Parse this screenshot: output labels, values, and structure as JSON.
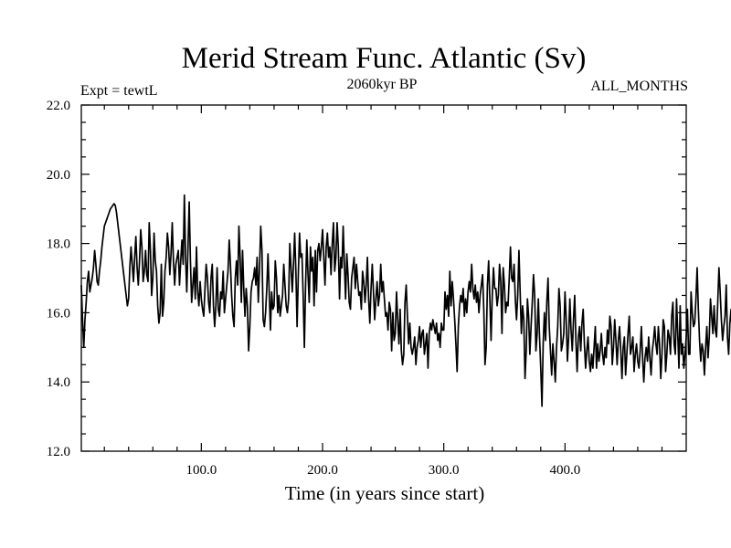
{
  "chart_data": {
    "type": "line",
    "title": "Merid Stream Func. Atlantic (Sv)",
    "subtitle_left": "Expt = tewtL",
    "subtitle_center": "2060kyr BP",
    "subtitle_right": "ALL_MONTHS",
    "xlabel": "Time (in years since start)",
    "ylabel": "",
    "xlim": [
      1,
      500
    ],
    "ylim": [
      12.0,
      22.0
    ],
    "x_ticks": [
      100,
      200,
      300,
      400
    ],
    "x_tick_labels": [
      "100.0",
      "200.0",
      "300.0",
      "400.0"
    ],
    "y_ticks": [
      12,
      14,
      16,
      18,
      20,
      22
    ],
    "y_tick_labels": [
      "12.0",
      "14.0",
      "16.0",
      "18.0",
      "20.0",
      "22.0"
    ],
    "x_start": 1,
    "x_step": 1,
    "series": [
      {
        "name": "Merid Stream Func. Atlantic",
        "color": "#000000",
        "values": [
          16.8,
          15.8,
          15.0,
          15.8,
          16.3,
          16.9,
          17.2,
          16.6,
          16.8,
          17.0,
          17.3,
          17.8,
          17.4,
          16.9,
          16.8,
          17.2,
          17.5,
          17.9,
          18.2,
          18.5,
          18.6,
          18.7,
          18.8,
          18.9,
          19.0,
          19.05,
          19.1,
          19.15,
          19.1,
          18.9,
          18.6,
          18.3,
          18.0,
          17.7,
          17.4,
          17.1,
          16.8,
          16.5,
          16.2,
          16.4,
          17.3,
          17.9,
          17.4,
          16.9,
          17.6,
          18.2,
          17.3,
          16.8,
          17.5,
          18.4,
          17.9,
          16.9,
          17.2,
          17.8,
          17.1,
          16.9,
          18.6,
          17.8,
          16.5,
          17.0,
          18.3,
          17.5,
          17.2,
          16.2,
          15.7,
          16.0,
          17.4,
          15.9,
          16.3,
          17.2,
          17.6,
          18.3,
          17.9,
          17.1,
          17.7,
          18.6,
          17.5,
          16.8,
          17.4,
          17.6,
          17.8,
          16.8,
          17.5,
          18.1,
          17.4,
          19.4,
          17.6,
          16.6,
          17.9,
          19.2,
          17.5,
          16.3,
          16.8,
          17.3,
          16.4,
          17.9,
          16.6,
          16.2,
          16.9,
          16.4,
          16.1,
          15.9,
          16.7,
          17.4,
          17.0,
          16.3,
          16.0,
          17.0,
          17.4,
          16.2,
          15.6,
          16.2,
          17.3,
          16.1,
          15.9,
          16.6,
          16.4,
          17.2,
          16.0,
          16.4,
          16.8,
          17.2,
          18.1,
          17.4,
          16.5,
          15.9,
          15.6,
          17.0,
          17.5,
          16.8,
          18.5,
          17.6,
          16.3,
          17.8,
          16.7,
          15.9,
          16.7,
          16.2,
          14.9,
          15.6,
          16.6,
          16.9,
          17.0,
          17.3,
          16.8,
          17.6,
          16.3,
          17.3,
          18.5,
          17.8,
          15.8,
          15.6,
          16.0,
          16.7,
          17.7,
          16.6,
          15.5,
          16.6,
          16.1,
          16.2,
          17.5,
          17.0,
          16.0,
          16.5,
          15.9,
          16.2,
          16.5,
          17.4,
          16.8,
          16.2,
          16.0,
          16.4,
          18.0,
          17.3,
          16.6,
          17.4,
          18.3,
          17.2,
          15.6,
          17.1,
          18.3,
          17.6,
          17.7,
          16.5,
          15.0,
          16.8,
          18.1,
          17.1,
          16.3,
          17.9,
          17.2,
          17.6,
          16.2,
          17.8,
          16.6,
          17.8,
          18.0,
          17.5,
          17.9,
          18.4,
          17.6,
          16.8,
          17.9,
          18.3,
          17.6,
          17.9,
          17.1,
          18.0,
          18.6,
          17.2,
          17.6,
          18.6,
          17.9,
          16.4,
          17.6,
          17.3,
          18.5,
          17.4,
          16.4,
          17.7,
          17.1,
          16.3,
          16.1,
          17.0,
          17.3,
          17.6,
          16.7,
          17.4,
          16.9,
          16.5,
          16.6,
          16.1,
          17.2,
          16.9,
          16.3,
          16.8,
          17.6,
          16.4,
          15.7,
          16.7,
          17.4,
          16.6,
          15.8,
          16.4,
          16.9,
          16.2,
          16.5,
          17.4,
          16.6,
          16.9,
          16.4,
          15.9,
          16.0,
          15.5,
          16.3,
          16.1,
          14.9,
          16.0,
          15.2,
          15.4,
          16.6,
          15.8,
          15.1,
          16.1,
          14.9,
          14.5,
          14.8,
          16.3,
          16.8,
          15.9,
          15.1,
          15.7,
          15.0,
          14.8,
          15.0,
          15.3,
          14.5,
          15.0,
          15.2,
          15.6,
          15.0,
          15.4,
          15.5,
          14.8,
          15.1,
          15.4,
          14.4,
          15.4,
          15.7,
          15.5,
          15.8,
          15.6,
          15.4,
          15.7,
          15.2,
          15.4,
          15.0,
          15.7,
          15.5,
          15.5,
          16.6,
          16.1,
          16.5,
          15.9,
          17.2,
          16.2,
          16.9,
          16.4,
          15.8,
          15.1,
          14.3,
          15.6,
          16.2,
          16.5,
          16.3,
          16.7,
          15.9,
          16.4,
          16.0,
          16.6,
          16.9,
          16.6,
          17.4,
          16.7,
          16.4,
          16.8,
          16.3,
          16.6,
          16.0,
          16.5,
          16.8,
          17.1,
          16.1,
          14.5,
          15.0,
          16.8,
          17.5,
          16.4,
          15.2,
          16.5,
          17.3,
          16.7,
          16.7,
          16.2,
          16.5,
          17.4,
          16.9,
          15.4,
          17.3,
          16.8,
          16.0,
          16.3,
          16.2,
          17.0,
          17.9,
          17.0,
          16.9,
          17.4,
          16.4,
          15.8,
          16.5,
          17.8,
          16.6,
          15.4,
          16.2,
          15.8,
          14.1,
          14.9,
          16.4,
          15.9,
          14.8,
          15.6,
          16.3,
          17.1,
          16.5,
          14.9,
          15.4,
          16.4,
          15.3,
          14.4,
          13.3,
          15.1,
          16.0,
          15.2,
          16.3,
          17.0,
          15.6,
          14.9,
          14.2,
          15.1,
          14.6,
          14.0,
          15.0,
          15.6,
          16.7,
          16.2,
          14.9,
          15.1,
          15.4,
          16.6,
          15.8,
          14.6,
          15.3,
          16.4,
          15.5,
          14.9,
          15.8,
          16.5,
          15.2,
          14.3,
          15.3,
          15.6,
          14.9,
          15.7,
          16.1,
          15.1,
          14.4,
          14.9,
          15.3,
          14.6,
          14.3,
          14.8,
          14.4,
          15.0,
          15.6,
          14.4,
          15.1,
          14.6,
          14.9,
          15.4,
          14.8,
          14.5,
          15.0,
          14.7,
          15.5,
          15.1,
          15.9,
          15.6,
          14.5,
          15.0,
          15.8,
          15.2,
          14.5,
          15.2,
          15.6,
          14.9,
          14.1,
          15.0,
          15.3,
          14.2,
          14.8,
          15.4,
          15.9,
          14.8,
          15.0,
          15.3,
          14.3,
          14.8,
          15.1,
          14.6,
          14.4,
          14.9,
          15.6,
          14.7,
          14.0,
          14.7,
          15.0,
          14.6,
          15.3,
          14.7,
          14.2,
          14.9,
          15.2,
          15.6,
          15.1,
          14.8,
          15.6,
          15.1,
          14.1,
          14.8,
          15.8,
          15.6,
          14.3,
          14.8,
          15.5,
          15.3,
          14.8,
          15.9,
          16.3,
          15.1,
          14.8,
          16.4,
          15.4,
          14.4,
          16.2,
          14.8,
          15.1,
          14.4,
          14.8,
          15.3,
          16.1,
          14.8,
          14.8,
          16.6,
          16.0,
          15.6,
          15.7,
          16.4,
          17.3,
          16.1,
          15.2,
          14.6,
          15.1,
          14.9,
          14.2,
          15.0,
          15.6,
          14.7,
          15.3,
          16.4,
          15.9,
          15.4,
          16.2,
          15.5,
          15.3,
          16.3,
          17.3,
          16.6,
          15.8,
          15.2,
          15.6,
          15.9,
          16.8,
          15.3,
          14.8,
          15.7,
          16.1,
          15.4,
          14.6,
          15.4,
          15.9,
          15.0,
          14.5,
          15.8,
          16.7,
          15.6,
          14.9,
          16.3,
          16.8,
          15.7,
          15.5,
          15.1,
          16.9,
          16.4,
          15.4,
          16.0,
          16.5,
          15.9,
          15.3,
          16.4,
          16.8,
          16.7,
          17.8,
          16.9,
          15.9,
          16.4,
          16.3,
          17.0,
          16.5,
          17.2,
          16.0,
          15.1,
          15.9,
          16.0,
          16.6,
          16.9,
          15.0,
          14.4,
          15.0,
          14.9,
          14.7,
          16.1,
          16.5,
          15.8,
          15.3,
          16.4,
          16.0,
          14.8,
          15.0,
          15.9,
          15.6,
          15.4,
          14.9,
          15.6,
          14.7,
          14.2,
          15.3,
          15.8,
          15.1,
          14.7,
          14.4,
          14.8,
          14.3,
          14.9,
          15.2,
          14.2,
          13.9,
          14.5,
          15.8,
          15.0,
          14.3,
          15.4,
          14.8,
          16.3,
          15.7,
          14.6,
          15.3,
          15.8,
          14.9,
          15.9,
          15.3,
          14.9,
          15.5,
          15.8,
          15.1,
          15.6,
          15.3,
          15.7,
          16.2,
          15.5,
          15.3,
          15.4,
          16.2,
          15.7,
          15.3,
          16.0,
          15.5,
          16.0,
          16.5,
          15.2,
          15.2,
          16.4,
          15.8,
          16.0,
          16.7,
          16.5,
          15.4,
          14.8,
          15.4,
          16.0,
          15.4,
          14.3,
          15.2,
          16.1,
          15.4,
          15.6,
          16.2,
          15.2,
          16.0,
          16.8,
          17.2,
          16.1,
          15.0,
          16.2,
          16.7,
          16.0,
          15.5,
          16.2,
          16.7
        ]
      }
    ]
  }
}
